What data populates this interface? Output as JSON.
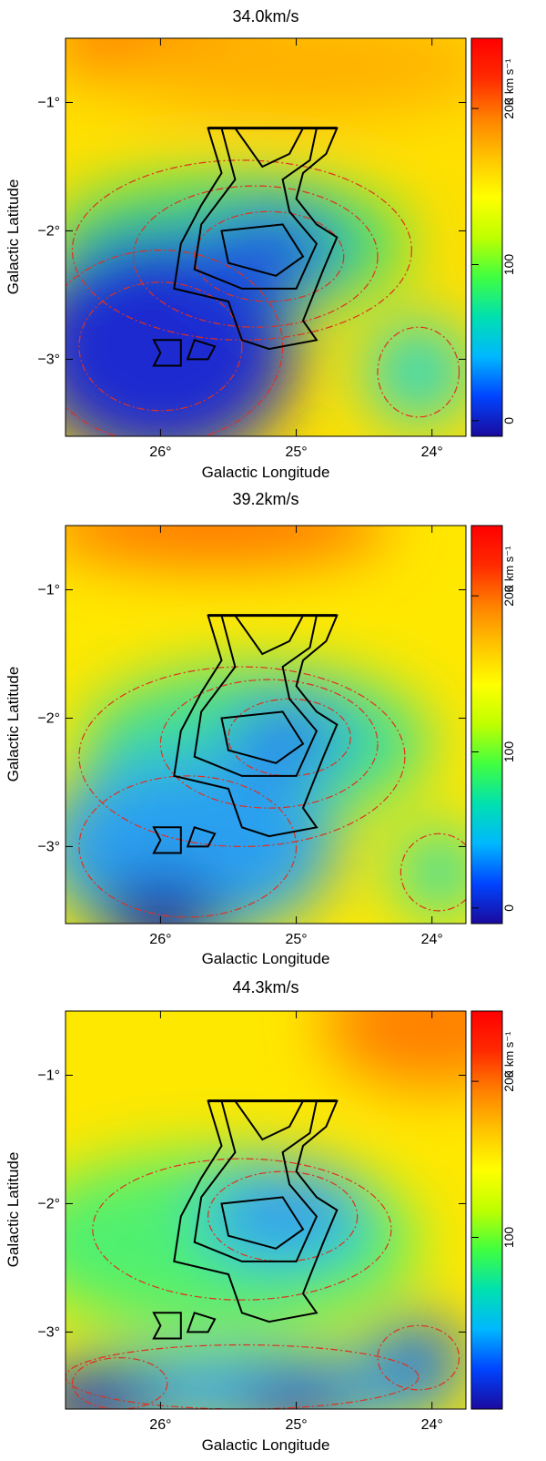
{
  "chart_data": [
    {
      "type": "heatmap",
      "title": "34.0km/s",
      "xlabel": "Galactic Longitude",
      "ylabel": "Galactic Latitude",
      "xlim": [
        26.7,
        23.75
      ],
      "ylim": [
        -3.6,
        -0.5
      ],
      "xticks": [
        {
          "value": 26,
          "label": "26°"
        },
        {
          "value": 25,
          "label": "25°"
        },
        {
          "value": 24,
          "label": "24°"
        }
      ],
      "yticks": [
        {
          "value": -1,
          "label": "−1°"
        },
        {
          "value": -2,
          "label": "−2°"
        },
        {
          "value": -3,
          "label": "−3°"
        }
      ],
      "colorbar": {
        "label": "K km s⁻¹",
        "range": [
          -10,
          245
        ],
        "ticks": [
          {
            "value": 0,
            "label": "0"
          },
          {
            "value": 100,
            "label": "100"
          },
          {
            "value": 200,
            "label": "200"
          }
        ]
      },
      "colormap": [
        "#1a0a9e",
        "#0044ff",
        "#00b7ff",
        "#00e0b0",
        "#40ff40",
        "#bfff00",
        "#ffff00",
        "#ffc400",
        "#ff8000",
        "#ff2a00",
        "#ff0000"
      ],
      "background_color": "#ffe000",
      "blobs": [
        {
          "l": 25.85,
          "b": -0.55,
          "rl": 0.9,
          "rb": 0.35,
          "color": "#ff3000"
        },
        {
          "l": 25.0,
          "b": -0.7,
          "rl": 1.5,
          "rb": 0.4,
          "color": "#ffb000"
        },
        {
          "l": 25.5,
          "b": -2.1,
          "rl": 1.35,
          "rb": 0.55,
          "color": "#40e070"
        },
        {
          "l": 26.0,
          "b": -2.9,
          "rl": 1.0,
          "rb": 0.9,
          "color": "#1a2ad0"
        },
        {
          "l": 25.2,
          "b": -2.15,
          "rl": 0.55,
          "rb": 0.35,
          "color": "#1a5ae0"
        },
        {
          "l": 24.1,
          "b": -3.1,
          "rl": 0.4,
          "rb": 0.4,
          "color": "#30d8c0"
        }
      ],
      "red_contours": [
        {
          "l": 25.2,
          "b": -2.2,
          "rl": 0.55,
          "rb": 0.35
        },
        {
          "l": 25.3,
          "b": -2.2,
          "rl": 0.9,
          "rb": 0.55
        },
        {
          "l": 25.4,
          "b": -2.15,
          "rl": 1.25,
          "rb": 0.7
        },
        {
          "l": 26.0,
          "b": -2.9,
          "rl": 0.6,
          "rb": 0.5
        },
        {
          "l": 26.0,
          "b": -2.9,
          "rl": 0.9,
          "rb": 0.75
        },
        {
          "l": 24.1,
          "b": -3.1,
          "rl": 0.3,
          "rb": 0.35
        }
      ]
    },
    {
      "type": "heatmap",
      "title": "39.2km/s",
      "xlabel": "Galactic Longitude",
      "ylabel": "Galactic Latitude",
      "xlim": [
        26.7,
        23.75
      ],
      "ylim": [
        -3.6,
        -0.5
      ],
      "xticks": [
        {
          "value": 26,
          "label": "26°"
        },
        {
          "value": 25,
          "label": "25°"
        },
        {
          "value": 24,
          "label": "24°"
        }
      ],
      "yticks": [
        {
          "value": -1,
          "label": "−1°"
        },
        {
          "value": -2,
          "label": "−2°"
        },
        {
          "value": -3,
          "label": "−3°"
        }
      ],
      "colorbar": {
        "label": "K km s⁻¹",
        "range": [
          -10,
          245
        ],
        "ticks": [
          {
            "value": 0,
            "label": "0"
          },
          {
            "value": 100,
            "label": "100"
          },
          {
            "value": 200,
            "label": "200"
          }
        ]
      },
      "colormap": [
        "#1a0a9e",
        "#0044ff",
        "#00b7ff",
        "#00e0b0",
        "#40ff40",
        "#bfff00",
        "#ffff00",
        "#ffc400",
        "#ff8000",
        "#ff2a00",
        "#ff0000"
      ],
      "background_color": "#ffe800",
      "blobs": [
        {
          "l": 25.6,
          "b": -0.5,
          "rl": 1.3,
          "rb": 0.3,
          "color": "#ff7000"
        },
        {
          "l": 25.3,
          "b": -2.2,
          "rl": 1.3,
          "rb": 0.6,
          "color": "#40e090"
        },
        {
          "l": 25.8,
          "b": -3.0,
          "rl": 1.1,
          "rb": 0.7,
          "color": "#2aa0f0"
        },
        {
          "l": 26.0,
          "b": -3.55,
          "rl": 0.45,
          "rb": 0.3,
          "color": "#1a10a0"
        },
        {
          "l": 25.05,
          "b": -2.15,
          "rl": 0.45,
          "rb": 0.3,
          "color": "#2a80f0"
        },
        {
          "l": 23.95,
          "b": -3.2,
          "rl": 0.35,
          "rb": 0.35,
          "color": "#40e0a0"
        }
      ],
      "red_contours": [
        {
          "l": 25.05,
          "b": -2.15,
          "rl": 0.45,
          "rb": 0.3
        },
        {
          "l": 25.2,
          "b": -2.2,
          "rl": 0.8,
          "rb": 0.5
        },
        {
          "l": 25.4,
          "b": -2.3,
          "rl": 1.2,
          "rb": 0.7
        },
        {
          "l": 25.8,
          "b": -3.0,
          "rl": 0.8,
          "rb": 0.55
        },
        {
          "l": 23.95,
          "b": -3.2,
          "rl": 0.28,
          "rb": 0.3
        }
      ]
    },
    {
      "type": "heatmap",
      "title": "44.3km/s",
      "xlabel": "Galactic Longitude",
      "ylabel": "Galactic Latitude",
      "xlim": [
        26.7,
        23.75
      ],
      "ylim": [
        -3.6,
        -0.5
      ],
      "xticks": [
        {
          "value": 26,
          "label": "26°"
        },
        {
          "value": 25,
          "label": "25°"
        },
        {
          "value": 24,
          "label": "24°"
        }
      ],
      "yticks": [
        {
          "value": -1,
          "label": "−1°"
        },
        {
          "value": -2,
          "label": "−2°"
        },
        {
          "value": -3,
          "label": "−3°"
        }
      ],
      "colorbar": {
        "label": "K km s⁻¹",
        "range": [
          -10,
          245
        ],
        "ticks": [
          {
            "value": 100,
            "label": "100"
          },
          {
            "value": 200,
            "label": "200"
          }
        ]
      },
      "colormap": [
        "#1a0a9e",
        "#0044ff",
        "#00b7ff",
        "#00e0b0",
        "#40ff40",
        "#bfff00",
        "#ffff00",
        "#ffc400",
        "#ff8000",
        "#ff2a00",
        "#ff0000"
      ],
      "background_color": "#ffe800",
      "blobs": [
        {
          "l": 24.0,
          "b": -0.6,
          "rl": 0.8,
          "rb": 0.5,
          "color": "#ff8000"
        },
        {
          "l": 25.6,
          "b": -2.3,
          "rl": 1.5,
          "rb": 0.7,
          "color": "#50f070"
        },
        {
          "l": 25.1,
          "b": -2.1,
          "rl": 0.6,
          "rb": 0.4,
          "color": "#30a0f0"
        },
        {
          "l": 25.4,
          "b": -3.45,
          "rl": 1.6,
          "rb": 0.3,
          "color": "#30a8f0"
        },
        {
          "l": 26.5,
          "b": -3.55,
          "rl": 0.5,
          "rb": 0.25,
          "color": "#1a20c0"
        },
        {
          "l": 25.0,
          "b": -3.55,
          "rl": 0.4,
          "rb": 0.2,
          "color": "#1a30d0"
        },
        {
          "l": 24.1,
          "b": -3.2,
          "rl": 0.35,
          "rb": 0.3,
          "color": "#2070e0"
        }
      ],
      "red_contours": [
        {
          "l": 25.1,
          "b": -2.1,
          "rl": 0.55,
          "rb": 0.35
        },
        {
          "l": 25.4,
          "b": -2.2,
          "rl": 1.1,
          "rb": 0.55
        },
        {
          "l": 25.4,
          "b": -3.35,
          "rl": 1.3,
          "rb": 0.25
        },
        {
          "l": 24.1,
          "b": -3.2,
          "rl": 0.3,
          "rb": 0.25
        },
        {
          "l": 26.3,
          "b": -3.4,
          "rl": 0.35,
          "rb": 0.2
        }
      ]
    }
  ]
}
